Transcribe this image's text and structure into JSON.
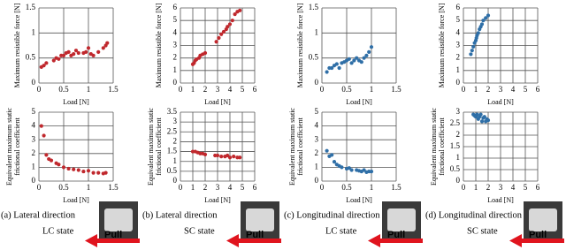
{
  "chart_data": [
    {
      "type": "scatter",
      "color": "#c0282d",
      "grid": true,
      "xlabel": "Load [N]",
      "ylabel": [
        "Maximum resistible force [N]"
      ],
      "xlim": [
        0,
        1.5
      ],
      "xticks": [
        0,
        0.5,
        1,
        1.5
      ],
      "ylim": [
        0,
        1.5
      ],
      "yticks": [
        0,
        0.5,
        1,
        1.5
      ],
      "x": [
        0.05,
        0.1,
        0.15,
        0.3,
        0.35,
        0.4,
        0.45,
        0.5,
        0.55,
        0.6,
        0.65,
        0.7,
        0.75,
        0.8,
        0.9,
        0.95,
        1.0,
        1.05,
        1.1,
        1.2,
        1.3,
        1.35,
        1.38
      ],
      "values": [
        0.32,
        0.35,
        0.4,
        0.45,
        0.5,
        0.48,
        0.55,
        0.55,
        0.6,
        0.62,
        0.55,
        0.58,
        0.65,
        0.6,
        0.6,
        0.62,
        0.7,
        0.58,
        0.55,
        0.62,
        0.7,
        0.75,
        0.8
      ]
    },
    {
      "type": "scatter",
      "color": "#c0282d",
      "grid": true,
      "xlabel": "Load [N]",
      "ylabel": [
        "Maximum resistible force [N]"
      ],
      "xlim": [
        0,
        6
      ],
      "xticks": [
        0,
        1,
        2,
        3,
        4,
        5,
        6
      ],
      "ylim": [
        0,
        6
      ],
      "yticks": [
        0,
        1,
        2,
        3,
        4,
        5,
        6
      ],
      "x": [
        1.0,
        1.1,
        1.2,
        1.3,
        1.5,
        1.6,
        1.8,
        2.0,
        2.9,
        3.1,
        3.3,
        3.5,
        3.7,
        3.8,
        4.0,
        4.2,
        4.4,
        4.6,
        4.8
      ],
      "values": [
        1.5,
        1.6,
        1.8,
        1.9,
        2.0,
        2.2,
        2.3,
        2.4,
        3.3,
        3.6,
        3.9,
        4.1,
        4.3,
        4.5,
        4.7,
        5.0,
        5.5,
        5.7,
        5.8
      ]
    },
    {
      "type": "scatter",
      "color": "#2f6fa7",
      "grid": true,
      "xlabel": "Load [N]",
      "ylabel": [
        "Maximum resistible force [N]"
      ],
      "xlim": [
        0,
        1.5
      ],
      "xticks": [
        0,
        0.5,
        1,
        1.5
      ],
      "ylim": [
        0,
        1.5
      ],
      "yticks": [
        0,
        0.5,
        1,
        1.5
      ],
      "x": [
        0.1,
        0.15,
        0.2,
        0.25,
        0.3,
        0.35,
        0.4,
        0.45,
        0.5,
        0.55,
        0.6,
        0.65,
        0.7,
        0.75,
        0.8,
        0.85,
        0.9,
        0.95,
        1.0
      ],
      "values": [
        0.22,
        0.3,
        0.3,
        0.35,
        0.38,
        0.3,
        0.4,
        0.42,
        0.45,
        0.48,
        0.4,
        0.45,
        0.5,
        0.45,
        0.42,
        0.5,
        0.55,
        0.62,
        0.72
      ]
    },
    {
      "type": "scatter",
      "color": "#2f6fa7",
      "grid": true,
      "xlabel": "Load [N]",
      "ylabel": [
        "Maximum resistible force [N]"
      ],
      "xlim": [
        0,
        6
      ],
      "xticks": [
        0,
        1,
        2,
        3,
        4,
        5,
        6
      ],
      "ylim": [
        0,
        6
      ],
      "yticks": [
        0,
        1,
        2,
        3,
        4,
        5,
        6
      ],
      "x": [
        0.6,
        0.7,
        0.8,
        0.9,
        1.0,
        1.05,
        1.1,
        1.2,
        1.3,
        1.4,
        1.5,
        1.6,
        1.8,
        2.0
      ],
      "values": [
        2.3,
        2.6,
        2.9,
        3.2,
        3.4,
        3.6,
        3.8,
        4.0,
        4.3,
        4.5,
        4.7,
        5.0,
        5.2,
        5.4
      ]
    },
    {
      "type": "scatter",
      "color": "#c0282d",
      "grid": true,
      "xlabel": "Load [N]",
      "ylabel": [
        "Equivalent maximum static",
        "frictional coefficient"
      ],
      "xlim": [
        0,
        1.5
      ],
      "xticks": [
        0,
        0.5,
        1,
        1.5
      ],
      "ylim": [
        0,
        5
      ],
      "yticks": [
        0,
        1,
        2,
        3,
        4,
        5
      ],
      "x": [
        0.05,
        0.1,
        0.15,
        0.2,
        0.25,
        0.35,
        0.4,
        0.5,
        0.6,
        0.7,
        0.8,
        0.9,
        1.0,
        1.1,
        1.2,
        1.3,
        1.35
      ],
      "values": [
        4.0,
        3.3,
        1.9,
        1.6,
        1.5,
        1.3,
        1.2,
        1.0,
        0.9,
        0.85,
        0.8,
        0.7,
        0.75,
        0.6,
        0.6,
        0.55,
        0.6
      ]
    },
    {
      "type": "scatter",
      "color": "#c0282d",
      "grid": true,
      "xlabel": "Load [N]",
      "ylabel": [
        "Equivalent maximum static",
        "frictional coefficient"
      ],
      "xlim": [
        0,
        6
      ],
      "xticks": [
        0,
        1,
        2,
        3,
        4,
        5,
        6
      ],
      "ylim": [
        0,
        3.5
      ],
      "yticks": [
        0,
        0.5,
        1,
        1.5,
        2,
        2.5,
        3,
        3.5
      ],
      "x": [
        1.0,
        1.2,
        1.4,
        1.6,
        1.8,
        2.0,
        2.8,
        3.0,
        3.3,
        3.6,
        3.8,
        4.0,
        4.3,
        4.6,
        4.8
      ],
      "values": [
        1.5,
        1.5,
        1.45,
        1.4,
        1.4,
        1.35,
        1.3,
        1.3,
        1.25,
        1.25,
        1.3,
        1.2,
        1.25,
        1.2,
        1.2
      ]
    },
    {
      "type": "scatter",
      "color": "#2f6fa7",
      "grid": true,
      "xlabel": "Load [N]",
      "ylabel": [
        "Equivalent maximum static",
        "frictional coefficient"
      ],
      "xlim": [
        0,
        1.5
      ],
      "xticks": [
        0,
        0.5,
        1,
        1.5
      ],
      "ylim": [
        0,
        5
      ],
      "yticks": [
        0,
        1,
        2,
        3,
        4,
        5
      ],
      "x": [
        0.1,
        0.15,
        0.2,
        0.25,
        0.3,
        0.35,
        0.4,
        0.5,
        0.55,
        0.6,
        0.7,
        0.75,
        0.8,
        0.85,
        0.9,
        0.95,
        1.0
      ],
      "values": [
        2.2,
        1.8,
        1.9,
        1.4,
        1.2,
        1.1,
        1.0,
        0.9,
        0.95,
        0.8,
        0.8,
        0.75,
        0.7,
        0.8,
        0.65,
        0.7,
        0.7
      ]
    },
    {
      "type": "scatter",
      "color": "#2f6fa7",
      "grid": true,
      "xlabel": "Load [N]",
      "ylabel": [
        "Equivalent maximum static",
        "frictional coefficient"
      ],
      "xlim": [
        0,
        6
      ],
      "xticks": [
        0,
        1,
        2,
        3,
        4,
        5,
        6
      ],
      "ylim": [
        0,
        3
      ],
      "yticks": [
        0,
        0.5,
        1,
        1.5,
        2,
        2.5,
        3
      ],
      "x": [
        0.8,
        0.9,
        1.0,
        1.1,
        1.2,
        1.3,
        1.4,
        1.5,
        1.6,
        1.7,
        1.8,
        1.9,
        2.0
      ],
      "values": [
        2.9,
        2.85,
        2.8,
        2.9,
        2.7,
        2.8,
        2.9,
        2.6,
        2.75,
        2.8,
        2.6,
        2.7,
        2.65
      ]
    }
  ],
  "captions": [
    {
      "title": "(a) Lateral direction",
      "state": "LC state",
      "pull": "Pull"
    },
    {
      "title": "(b) Lateral direction",
      "state": "SC  state",
      "pull": "Pull"
    },
    {
      "title": "(c) Longitudinal direction",
      "state": "LC  state",
      "pull": "Pull"
    },
    {
      "title": "(d) Longitudinal direction",
      "state": "SC  state",
      "pull": "Pull"
    }
  ]
}
